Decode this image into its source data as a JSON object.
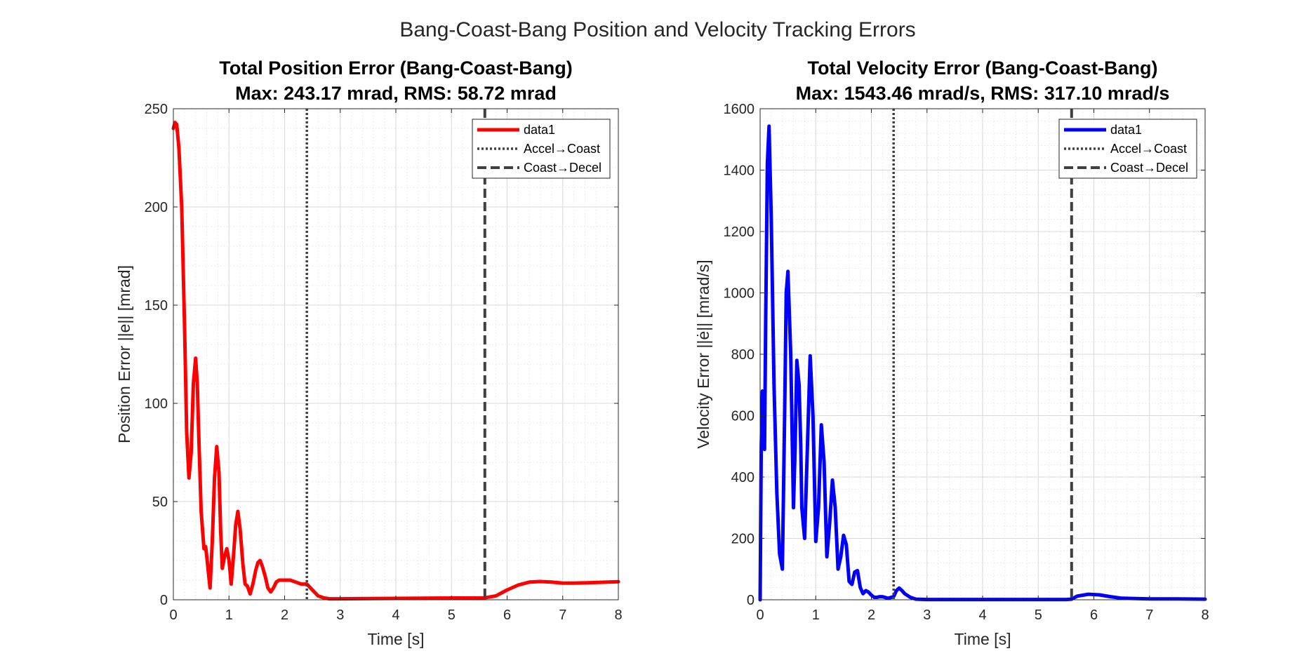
{
  "figure": {
    "title": "Bang-Coast-Bang Position and Velocity Tracking Errors"
  },
  "chart_data": [
    {
      "type": "line",
      "title_line1": "Total Position Error (Bang-Coast-Bang)",
      "title_line2": "Max: 243.17 mrad, RMS: 58.72 mrad",
      "xlabel": "Time [s]",
      "ylabel": "Position Error ||e|| [mrad]",
      "xlim": [
        0,
        8
      ],
      "ylim": [
        0,
        250
      ],
      "xticks": [
        0,
        1,
        2,
        3,
        4,
        5,
        6,
        7,
        8
      ],
      "yticks": [
        0,
        50,
        100,
        150,
        200,
        250
      ],
      "grid": true,
      "minor_grid": true,
      "legend_location": "top-right",
      "series": [
        {
          "name": "data1",
          "color": "#ff0000",
          "x": [
            0,
            0.03,
            0.06,
            0.1,
            0.15,
            0.2,
            0.24,
            0.28,
            0.32,
            0.36,
            0.4,
            0.43,
            0.46,
            0.5,
            0.55,
            0.58,
            0.6,
            0.63,
            0.66,
            0.7,
            0.74,
            0.78,
            0.82,
            0.85,
            0.88,
            0.92,
            0.96,
            1.0,
            1.04,
            1.08,
            1.12,
            1.16,
            1.2,
            1.25,
            1.29,
            1.33,
            1.38,
            1.43,
            1.48,
            1.52,
            1.56,
            1.6,
            1.65,
            1.7,
            1.75,
            1.8,
            1.85,
            1.9,
            2.0,
            2.1,
            2.2,
            2.3,
            2.4,
            2.5,
            2.6,
            2.7,
            2.8,
            2.9,
            3.0,
            3.5,
            4.0,
            4.5,
            5.0,
            5.5,
            5.6,
            5.8,
            6.0,
            6.2,
            6.4,
            6.6,
            6.8,
            7.0,
            7.2,
            7.5,
            8.0
          ],
          "y": [
            240,
            243,
            242,
            230,
            200,
            140,
            85,
            62,
            75,
            110,
            123,
            110,
            80,
            45,
            26,
            27,
            22,
            14,
            6,
            30,
            62,
            78,
            65,
            35,
            16,
            22,
            26,
            20,
            8,
            22,
            38,
            45,
            36,
            18,
            8,
            7,
            3,
            8,
            15,
            19,
            20,
            17,
            12,
            6,
            4,
            6,
            9,
            10,
            10,
            10,
            9,
            8,
            8,
            5,
            2,
            1,
            0.5,
            0.5,
            0.5,
            0.6,
            0.7,
            0.8,
            0.9,
            0.9,
            1.0,
            2,
            5,
            7.5,
            9,
            9.3,
            9,
            8.5,
            8.5,
            8.7,
            9.2
          ]
        }
      ],
      "vlines": [
        {
          "name": "Accel→Coast",
          "x": 2.4,
          "style": "dotted",
          "color": "#404040"
        },
        {
          "name": "Coast→Decel",
          "x": 5.6,
          "style": "dashed",
          "color": "#404040"
        }
      ]
    },
    {
      "type": "line",
      "title_line1": "Total Velocity Error (Bang-Coast-Bang)",
      "title_line2": "Max: 1543.46 mrad/s, RMS: 317.10 mrad/s",
      "xlabel": "Time [s]",
      "ylabel": "Velocity Error ||ė|| [mrad/s]",
      "xlim": [
        0,
        8
      ],
      "ylim": [
        0,
        1600
      ],
      "xticks": [
        0,
        1,
        2,
        3,
        4,
        5,
        6,
        7,
        8
      ],
      "yticks": [
        0,
        200,
        400,
        600,
        800,
        1000,
        1200,
        1400,
        1600
      ],
      "grid": true,
      "minor_grid": true,
      "legend_location": "top-right",
      "series": [
        {
          "name": "data1",
          "color": "#0000ff",
          "x": [
            0,
            0.02,
            0.04,
            0.06,
            0.08,
            0.1,
            0.13,
            0.16,
            0.2,
            0.25,
            0.3,
            0.35,
            0.4,
            0.44,
            0.47,
            0.5,
            0.55,
            0.6,
            0.63,
            0.66,
            0.7,
            0.73,
            0.75,
            0.8,
            0.85,
            0.9,
            0.95,
            1.0,
            1.05,
            1.1,
            1.15,
            1.2,
            1.25,
            1.3,
            1.35,
            1.4,
            1.45,
            1.5,
            1.55,
            1.6,
            1.65,
            1.7,
            1.75,
            1.8,
            1.85,
            1.9,
            1.95,
            2.0,
            2.05,
            2.1,
            2.15,
            2.2,
            2.3,
            2.4,
            2.45,
            2.5,
            2.55,
            2.6,
            2.7,
            2.8,
            3.0,
            3.5,
            4.0,
            5.0,
            5.5,
            5.6,
            5.7,
            5.9,
            6.1,
            6.3,
            6.5,
            7.0,
            7.5,
            8.0
          ],
          "y": [
            0,
            500,
            680,
            560,
            490,
            900,
            1420,
            1543,
            1250,
            700,
            350,
            150,
            100,
            600,
            1000,
            1070,
            800,
            300,
            500,
            780,
            700,
            500,
            300,
            200,
            500,
            795,
            600,
            190,
            300,
            570,
            450,
            140,
            250,
            390,
            300,
            100,
            140,
            210,
            180,
            60,
            50,
            90,
            95,
            40,
            20,
            30,
            25,
            15,
            8,
            8,
            10,
            10,
            5,
            10,
            30,
            38,
            30,
            20,
            8,
            2,
            1,
            1,
            1,
            1,
            1,
            2,
            12,
            18,
            16,
            10,
            5,
            3,
            3,
            2
          ]
        }
      ],
      "vlines": [
        {
          "name": "Accel→Coast",
          "x": 2.4,
          "style": "dotted",
          "color": "#404040"
        },
        {
          "name": "Coast→Decel",
          "x": 5.6,
          "style": "dashed",
          "color": "#404040"
        }
      ]
    }
  ]
}
